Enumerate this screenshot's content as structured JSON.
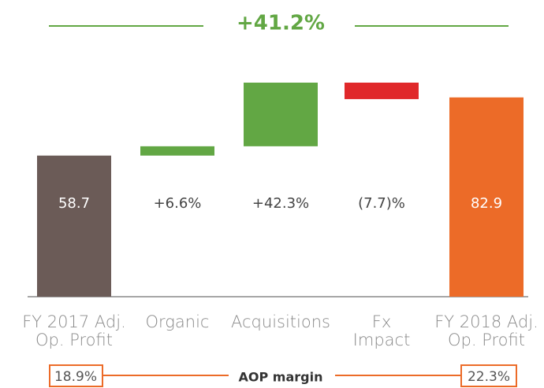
{
  "chart_data": {
    "type": "waterfall",
    "total_label": "+41.2%",
    "categories": [
      "FY 2017 Adj.\nOp. Profit",
      "Organic",
      "Acquisitions",
      "Fx\nImpact",
      "FY 2018 Adj.\nOp. Profit"
    ],
    "kinds": [
      "total",
      "percent",
      "percent",
      "percent",
      "total"
    ],
    "values": [
      58.7,
      6.6,
      42.3,
      -7.7,
      82.9
    ],
    "value_labels": [
      "58.7",
      "+6.6%",
      "+42.3%",
      "(7.7)%",
      "82.9"
    ],
    "colors": [
      "#6b5b57",
      "#62a744",
      "#62a744",
      "#e0282a",
      "#ec6b28"
    ],
    "margin_label": "AOP margin",
    "margins": [
      "18.9%",
      "22.3%"
    ]
  }
}
